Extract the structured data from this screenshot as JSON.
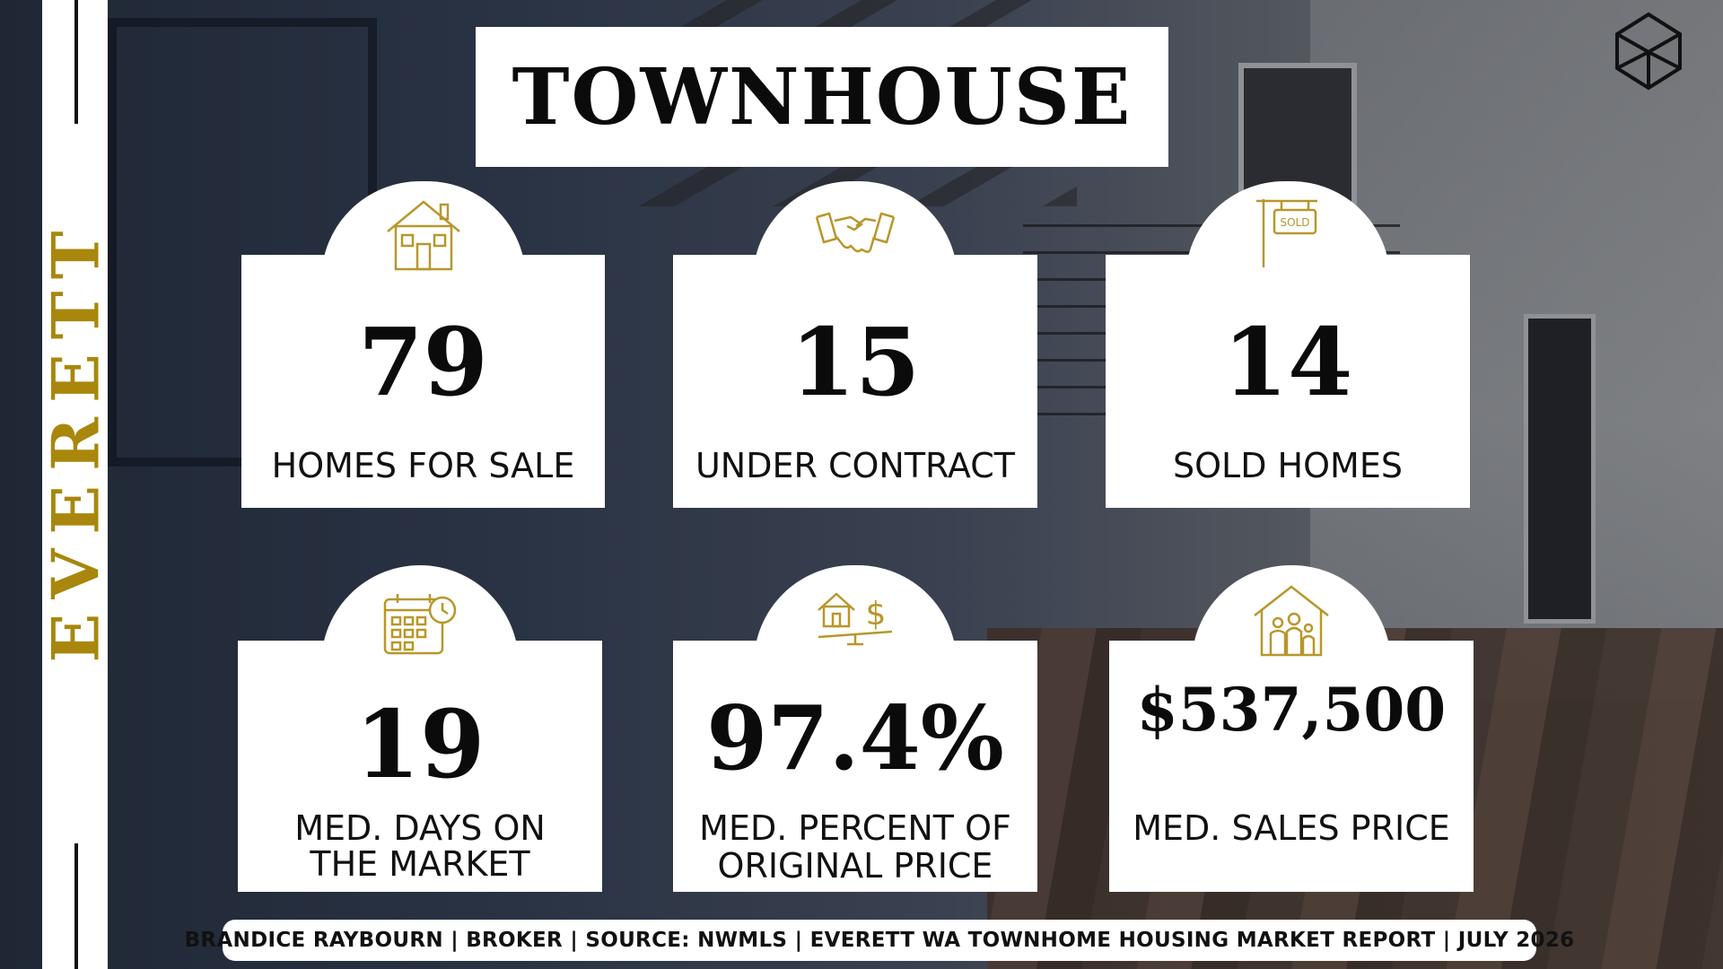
{
  "sidebar": {
    "city": "EVERETT"
  },
  "header": {
    "title": "TOWNHOUSE"
  },
  "stats": [
    {
      "value": "79",
      "label_line1": "HOMES FOR SALE",
      "label_line2": "",
      "icon": "house-icon"
    },
    {
      "value": "15",
      "label_line1": "UNDER CONTRACT",
      "label_line2": "",
      "icon": "handshake-icon"
    },
    {
      "value": "14",
      "label_line1": "SOLD HOMES",
      "label_line2": "",
      "icon": "sold-sign-icon"
    },
    {
      "value": "19",
      "label_line1": "MED. DAYS ON",
      "label_line2": "THE MARKET",
      "icon": "calendar-clock-icon"
    },
    {
      "value": "97.4%",
      "label_line1": "MED. PERCENT OF",
      "label_line2": "ORIGINAL PRICE",
      "icon": "house-dollar-scale-icon"
    },
    {
      "value": "$537,500",
      "label_line1": "MED. SALES PRICE",
      "label_line2": "",
      "icon": "family-house-icon"
    }
  ],
  "footer": {
    "text": "BRANDICE RAYBOURN | BROKER | SOURCE: NWMLS | EVERETT WA TOWNHOME HOUSING MARKET REPORT | JULY 2026"
  },
  "colors": {
    "accent_gold": "#a8870c",
    "icon_gold": "#b8972a",
    "card_bg": "#ffffff",
    "text": "#0b0b0b"
  }
}
